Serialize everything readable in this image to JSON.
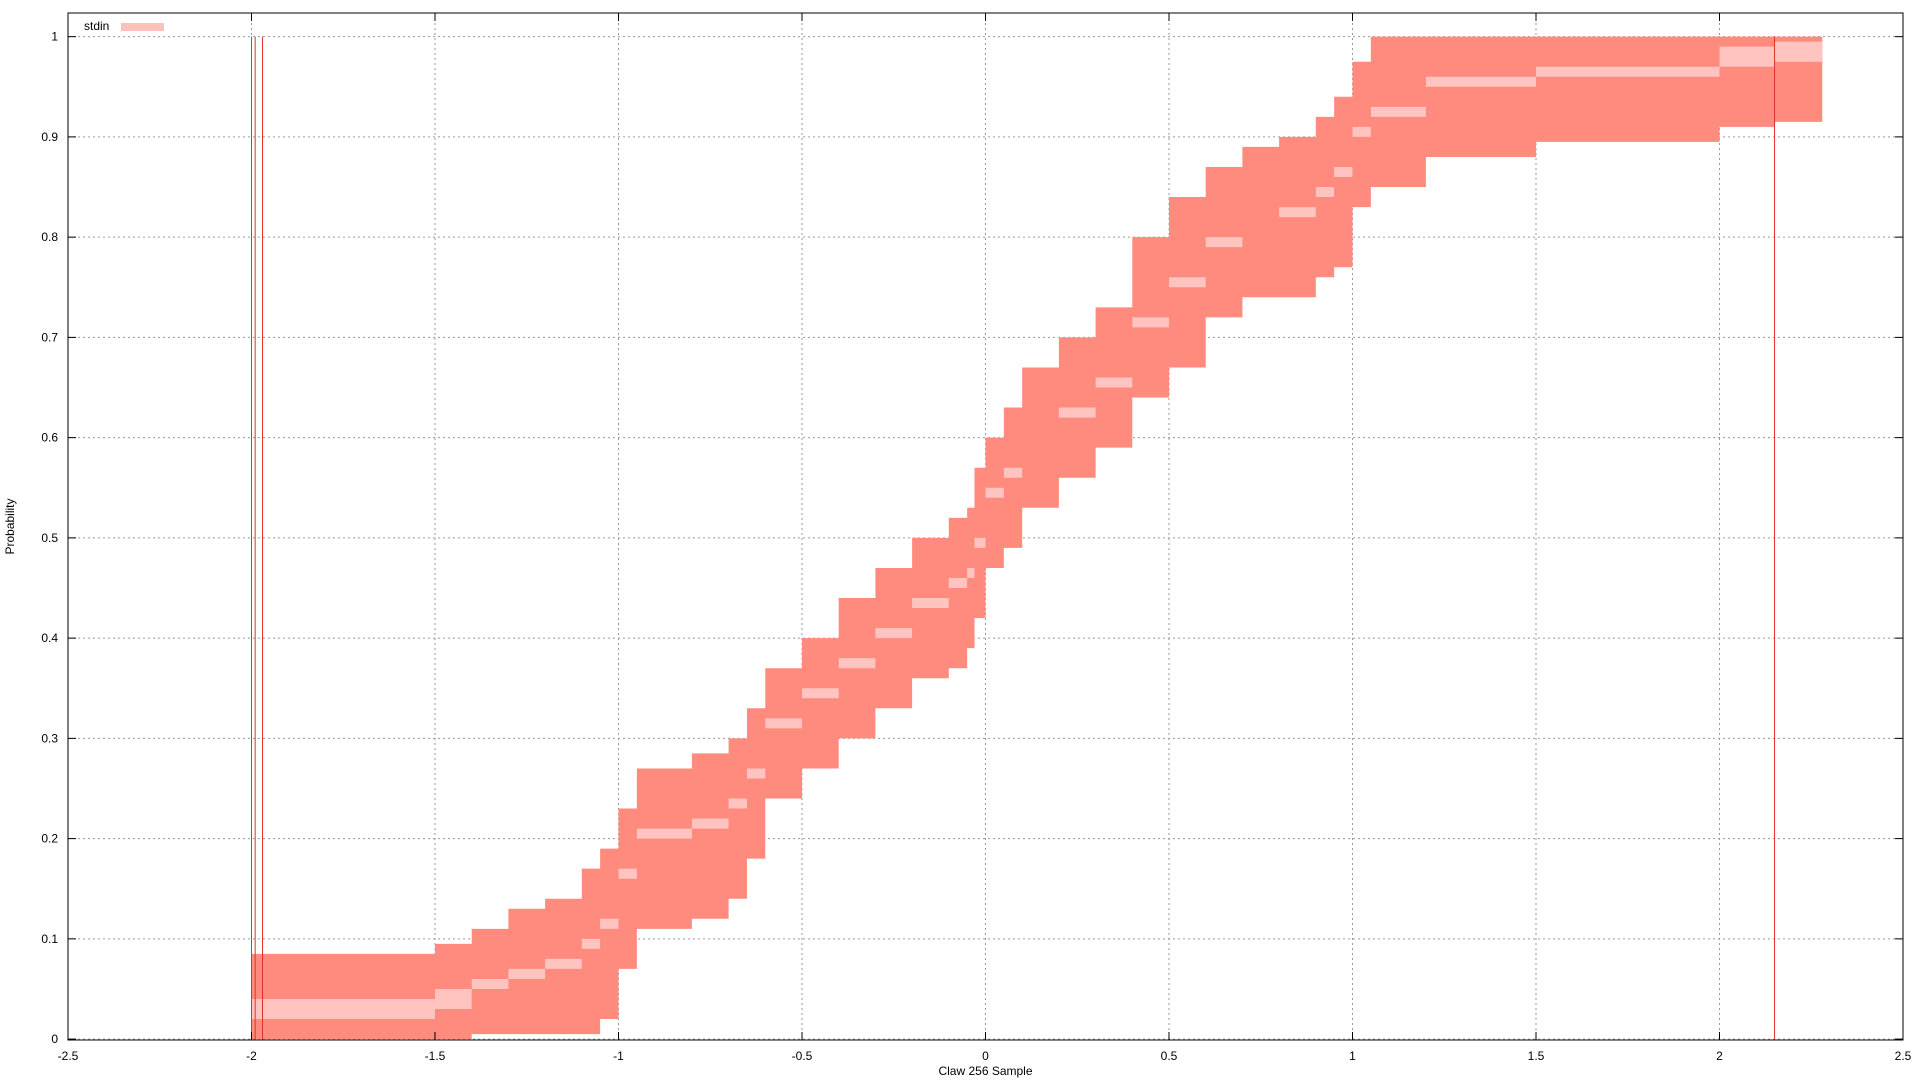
{
  "chart_data": {
    "type": "area",
    "title": "",
    "xlabel": "Claw 256 Sample",
    "ylabel": "Probability",
    "xlim": [
      -2.5,
      2.5
    ],
    "ylim": [
      -0.0009,
      1.0236
    ],
    "x_ticks": [
      "-2.5",
      "-2",
      "-1.5",
      "-1",
      "-0.5",
      "0",
      "0.5",
      "1",
      "1.5",
      "2",
      "2.5"
    ],
    "y_ticks": [
      "0",
      "0.1",
      "0.2",
      "0.3",
      "0.4",
      "0.5",
      "0.6",
      "0.7",
      "0.8",
      "0.9",
      "1"
    ],
    "grid": true,
    "legend_position": "top-left",
    "legend": [
      {
        "label": "stdin",
        "color": "#ffc0bb"
      }
    ],
    "colors": {
      "outer_band": "#ff8a7e",
      "inner_band": "#ffc4bf",
      "line": "#e0322a",
      "grid": "#9a9a9a"
    },
    "series": [
      {
        "name": "stdin",
        "role": "outer-band",
        "x": [
          -2.0,
          -1.5,
          -1.4,
          -1.3,
          -1.2,
          -1.1,
          -1.05,
          -1.0,
          -0.95,
          -0.8,
          -0.7,
          -0.65,
          -0.6,
          -0.5,
          -0.4,
          -0.3,
          -0.2,
          -0.1,
          -0.05,
          -0.03,
          0.0,
          0.05,
          0.1,
          0.2,
          0.3,
          0.4,
          0.5,
          0.6,
          0.7,
          0.8,
          0.9,
          0.95,
          1.0,
          1.05,
          1.2,
          1.5,
          2.0,
          2.15,
          2.28
        ],
        "lower": [
          0.0,
          0.0,
          0.005,
          0.005,
          0.005,
          0.005,
          0.02,
          0.07,
          0.11,
          0.12,
          0.14,
          0.18,
          0.24,
          0.27,
          0.3,
          0.33,
          0.36,
          0.37,
          0.39,
          0.42,
          0.47,
          0.49,
          0.53,
          0.56,
          0.59,
          0.64,
          0.67,
          0.72,
          0.74,
          0.74,
          0.76,
          0.77,
          0.83,
          0.85,
          0.88,
          0.895,
          0.91,
          0.915,
          0.915
        ],
        "upper": [
          0.085,
          0.095,
          0.11,
          0.13,
          0.14,
          0.17,
          0.19,
          0.23,
          0.27,
          0.285,
          0.3,
          0.33,
          0.37,
          0.4,
          0.44,
          0.47,
          0.5,
          0.52,
          0.53,
          0.57,
          0.6,
          0.63,
          0.67,
          0.7,
          0.73,
          0.8,
          0.84,
          0.87,
          0.89,
          0.9,
          0.92,
          0.94,
          0.975,
          1.0,
          1.0,
          1.0,
          1.0,
          1.0,
          1.0
        ]
      },
      {
        "name": "stdin",
        "role": "inner-band",
        "x": [
          -2.0,
          -1.5,
          -1.4,
          -1.3,
          -1.2,
          -1.1,
          -1.05,
          -1.0,
          -0.95,
          -0.8,
          -0.7,
          -0.65,
          -0.6,
          -0.5,
          -0.4,
          -0.3,
          -0.2,
          -0.1,
          -0.05,
          -0.03,
          0.0,
          0.05,
          0.1,
          0.2,
          0.3,
          0.4,
          0.5,
          0.6,
          0.7,
          0.8,
          0.9,
          0.95,
          1.0,
          1.05,
          1.2,
          1.5,
          2.0,
          2.15,
          2.28
        ],
        "lower": [
          0.02,
          0.03,
          0.05,
          0.06,
          0.07,
          0.09,
          0.11,
          0.16,
          0.2,
          0.21,
          0.23,
          0.26,
          0.31,
          0.34,
          0.37,
          0.4,
          0.43,
          0.45,
          0.46,
          0.49,
          0.54,
          0.56,
          0.6,
          0.62,
          0.65,
          0.71,
          0.75,
          0.79,
          0.82,
          0.82,
          0.84,
          0.86,
          0.9,
          0.92,
          0.95,
          0.96,
          0.97,
          0.975,
          0.975
        ],
        "upper": [
          0.04,
          0.05,
          0.06,
          0.07,
          0.08,
          0.1,
          0.12,
          0.17,
          0.21,
          0.22,
          0.24,
          0.27,
          0.32,
          0.35,
          0.38,
          0.41,
          0.44,
          0.46,
          0.47,
          0.5,
          0.55,
          0.57,
          0.6,
          0.63,
          0.66,
          0.72,
          0.76,
          0.8,
          0.82,
          0.83,
          0.85,
          0.87,
          0.91,
          0.93,
          0.96,
          0.97,
          0.99,
          0.995,
          1.0
        ]
      }
    ],
    "vertical_lines": [
      -2.0,
      -1.99,
      -1.97,
      2.15
    ]
  }
}
